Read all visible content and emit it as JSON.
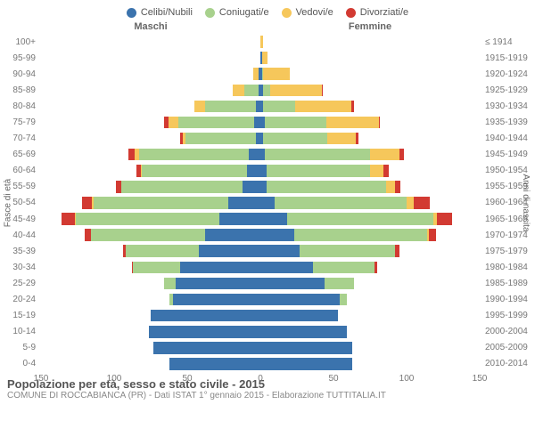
{
  "legend": [
    {
      "label": "Celibi/Nubili",
      "color": "#3b73ad"
    },
    {
      "label": "Coniugati/e",
      "color": "#a8d18d"
    },
    {
      "label": "Vedovi/e",
      "color": "#f6c75b"
    },
    {
      "label": "Divorziati/e",
      "color": "#d23a32"
    }
  ],
  "header_male": "Maschi",
  "header_female": "Femmine",
  "yaxis_left": "Fasce di età",
  "yaxis_right": "Anni di nascita",
  "xaxis_ticks": [
    150,
    100,
    50,
    0,
    50,
    100,
    150
  ],
  "scale_max": 150,
  "title": "Popolazione per età, sesso e stato civile - 2015",
  "subtitle": "COMUNE DI ROCCABIANCA (PR) - Dati ISTAT 1° gennaio 2015 - Elaborazione TUTTITALIA.IT",
  "background_color": "#ffffff",
  "grid_color": "#cccccc",
  "font_color": "#666666",
  "bar_height_pct": 75,
  "rows": [
    {
      "age": "100+",
      "yr": "≤ 1914",
      "m": [
        0,
        0,
        0,
        0
      ],
      "f": [
        0,
        0,
        2,
        0
      ]
    },
    {
      "age": "95-99",
      "yr": "1915-1919",
      "m": [
        0,
        0,
        0,
        0
      ],
      "f": [
        1,
        0,
        4,
        0
      ]
    },
    {
      "age": "90-94",
      "yr": "1920-1924",
      "m": [
        1,
        0,
        4,
        0
      ],
      "f": [
        1,
        1,
        18,
        0
      ]
    },
    {
      "age": "85-89",
      "yr": "1925-1929",
      "m": [
        1,
        10,
        8,
        0
      ],
      "f": [
        2,
        5,
        35,
        1
      ]
    },
    {
      "age": "80-84",
      "yr": "1930-1934",
      "m": [
        3,
        35,
        7,
        0
      ],
      "f": [
        2,
        22,
        38,
        2
      ]
    },
    {
      "age": "75-79",
      "yr": "1935-1939",
      "m": [
        4,
        52,
        7,
        3
      ],
      "f": [
        3,
        42,
        36,
        1
      ]
    },
    {
      "age": "70-74",
      "yr": "1940-1944",
      "m": [
        3,
        48,
        2,
        2
      ],
      "f": [
        2,
        44,
        19,
        2
      ]
    },
    {
      "age": "65-69",
      "yr": "1945-1949",
      "m": [
        8,
        75,
        3,
        4
      ],
      "f": [
        3,
        72,
        20,
        3
      ]
    },
    {
      "age": "60-64",
      "yr": "1950-1954",
      "m": [
        9,
        72,
        1,
        3
      ],
      "f": [
        4,
        71,
        9,
        4
      ]
    },
    {
      "age": "55-59",
      "yr": "1955-1959",
      "m": [
        12,
        83,
        0,
        4
      ],
      "f": [
        4,
        82,
        6,
        4
      ]
    },
    {
      "age": "50-54",
      "yr": "1960-1964",
      "m": [
        22,
        92,
        1,
        7
      ],
      "f": [
        10,
        90,
        5,
        11
      ]
    },
    {
      "age": "45-49",
      "yr": "1965-1969",
      "m": [
        28,
        98,
        1,
        9
      ],
      "f": [
        18,
        100,
        3,
        10
      ]
    },
    {
      "age": "40-44",
      "yr": "1970-1974",
      "m": [
        38,
        78,
        0,
        4
      ],
      "f": [
        23,
        91,
        1,
        5
      ]
    },
    {
      "age": "35-39",
      "yr": "1975-1979",
      "m": [
        42,
        50,
        0,
        2
      ],
      "f": [
        27,
        65,
        0,
        3
      ]
    },
    {
      "age": "30-34",
      "yr": "1980-1984",
      "m": [
        55,
        32,
        0,
        1
      ],
      "f": [
        36,
        42,
        0,
        2
      ]
    },
    {
      "age": "25-29",
      "yr": "1985-1989",
      "m": [
        58,
        8,
        0,
        0
      ],
      "f": [
        44,
        20,
        0,
        0
      ]
    },
    {
      "age": "20-24",
      "yr": "1990-1994",
      "m": [
        60,
        2,
        0,
        0
      ],
      "f": [
        54,
        5,
        0,
        0
      ]
    },
    {
      "age": "15-19",
      "yr": "1995-1999",
      "m": [
        75,
        0,
        0,
        0
      ],
      "f": [
        53,
        0,
        0,
        0
      ]
    },
    {
      "age": "10-14",
      "yr": "2000-2004",
      "m": [
        76,
        0,
        0,
        0
      ],
      "f": [
        59,
        0,
        0,
        0
      ]
    },
    {
      "age": "5-9",
      "yr": "2005-2009",
      "m": [
        73,
        0,
        0,
        0
      ],
      "f": [
        63,
        0,
        0,
        0
      ]
    },
    {
      "age": "0-4",
      "yr": "2010-2014",
      "m": [
        62,
        0,
        0,
        0
      ],
      "f": [
        63,
        0,
        0,
        0
      ]
    }
  ]
}
